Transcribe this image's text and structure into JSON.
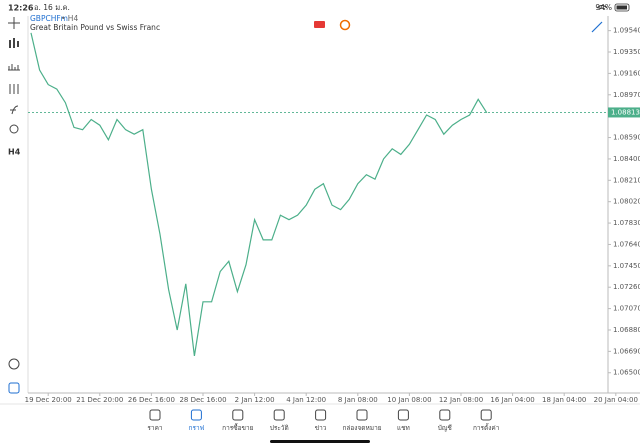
{
  "status_bar": {
    "time": "12:26",
    "date": "อ. 16 ม.ค.",
    "battery": "94%"
  },
  "toolbar": {
    "timeframe": "H4"
  },
  "chart_data": {
    "type": "line",
    "title": "GBPCHFm",
    "period": "• H4",
    "subtitle": "Great Britain Pound vs Swiss Franc",
    "color": "#4caf8a",
    "categories": [
      null,
      null,
      "19 Dec 20:00",
      null,
      null,
      null,
      null,
      null,
      "21 Dec 20:00",
      null,
      null,
      null,
      null,
      null,
      "26 Dec 16:00",
      null,
      null,
      null,
      null,
      null,
      "28 Dec 16:00",
      null,
      null,
      null,
      null,
      null,
      "2 Jan 12:00",
      null,
      null,
      null,
      null,
      null,
      "4 Jan 12:00",
      null,
      null,
      null,
      null,
      null,
      "8 Jan 08:00",
      null,
      null,
      null,
      null,
      null,
      "10 Jan 08:00",
      null,
      null,
      null,
      null,
      null,
      "12 Jan 08:00",
      null,
      null,
      null,
      null,
      null,
      "16 Jan 04:00",
      null,
      null,
      null,
      null,
      null,
      "18 Jan 04:00",
      null,
      null,
      null,
      null,
      null,
      "20 Jan 04:00"
    ],
    "values": [
      1.0952,
      1.0919,
      1.0906,
      1.0902,
      1.089,
      1.0868,
      1.0866,
      1.0875,
      1.087,
      1.0857,
      1.0875,
      1.0866,
      1.0862,
      1.0866,
      1.0813,
      1.0773,
      1.0724,
      1.0688,
      1.0729,
      1.0665,
      1.0713,
      1.0713,
      1.074,
      1.0749,
      1.0722,
      1.0746,
      1.0786,
      1.0768,
      1.0768,
      1.079,
      1.0786,
      1.079,
      1.0799,
      1.0813,
      1.0818,
      1.0799,
      1.0795,
      1.0804,
      1.0818,
      1.0826,
      1.0822,
      1.084,
      1.0849,
      1.0844,
      1.0853,
      1.0866,
      1.0879,
      1.0875,
      1.0862,
      1.087,
      1.0875,
      1.0879,
      1.0893,
      1.0881,
      null,
      null,
      null,
      null,
      null,
      null,
      null,
      null,
      null,
      null,
      null,
      null,
      null,
      null,
      null
    ],
    "current_price": 1.08813,
    "ylim": [
      1.0632,
      1.0967
    ],
    "yticks": [
      {
        "value": 1.0954,
        "label": "1.09540"
      },
      {
        "value": 1.0935,
        "label": "1.09350"
      },
      {
        "value": 1.0916,
        "label": "1.09160"
      },
      {
        "value": 1.0897,
        "label": "1.08970"
      },
      {
        "value": 1.0859,
        "label": "1.08590"
      },
      {
        "value": 1.084,
        "label": "1.08400"
      },
      {
        "value": 1.0821,
        "label": "1.08210"
      },
      {
        "value": 1.0802,
        "label": "1.08020"
      },
      {
        "value": 1.0783,
        "label": "1.07830"
      },
      {
        "value": 1.0764,
        "label": "1.07640"
      },
      {
        "value": 1.0745,
        "label": "1.07450"
      },
      {
        "value": 1.0726,
        "label": "1.07260"
      },
      {
        "value": 1.0707,
        "label": "1.07070"
      },
      {
        "value": 1.0688,
        "label": "1.06880"
      },
      {
        "value": 1.0669,
        "label": "1.06690"
      },
      {
        "value": 1.065,
        "label": "1.06500"
      }
    ]
  },
  "nav": [
    "ราคา",
    "กราฟ",
    "การซื้อขาย",
    "ประวัติ",
    "ข่าว",
    "กล่องจดหมาย",
    "แชท",
    "บัญชี",
    "การตั้งค่า"
  ]
}
